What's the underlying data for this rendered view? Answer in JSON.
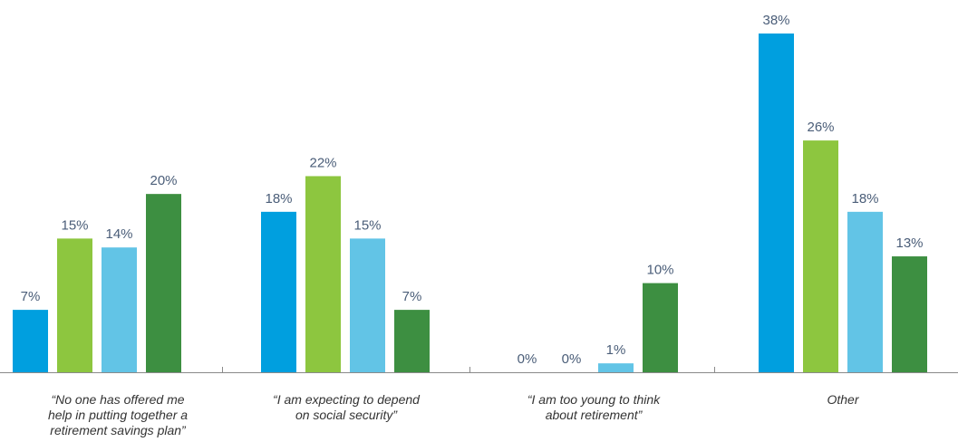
{
  "chart_data": {
    "type": "bar",
    "categories": [
      [
        "“No one has offered me",
        "help in putting together a",
        "retirement savings plan”"
      ],
      [
        "“I am expecting to depend",
        "on social security”"
      ],
      [
        "“I am too young to think",
        "about retirement”"
      ],
      [
        "Other"
      ]
    ],
    "series": [
      {
        "values": [
          7,
          18,
          0,
          38
        ],
        "labels": [
          "7%",
          "18%",
          "0%",
          "38%"
        ],
        "color": "#009fdf"
      },
      {
        "values": [
          15,
          22,
          0,
          26
        ],
        "labels": [
          "15%",
          "22%",
          "0%",
          "26%"
        ],
        "color": "#8dc63f"
      },
      {
        "values": [
          14,
          15,
          1,
          18
        ],
        "labels": [
          "14%",
          "15%",
          "1%",
          "18%"
        ],
        "color": "#62c4e6"
      },
      {
        "values": [
          20,
          7,
          10,
          13
        ],
        "labels": [
          "20%",
          "7%",
          "10%",
          "13%"
        ],
        "color": "#3d8f41"
      }
    ],
    "ylim": [
      0,
      38
    ],
    "grid": false,
    "legend": "none",
    "axis_color": "#8a8a8a",
    "value_label_color": "#4a5d78"
  }
}
